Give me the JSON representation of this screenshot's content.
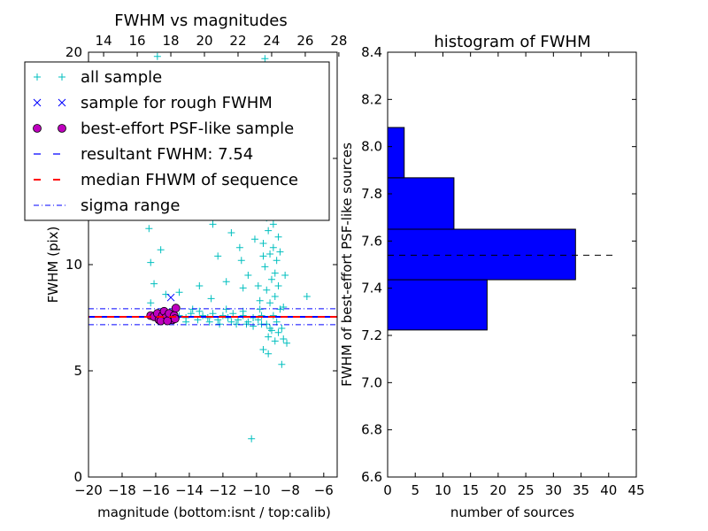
{
  "chart_data": [
    {
      "type": "scatter",
      "title": "FWHM vs magnitudes",
      "xlabel": "magnitude (bottom:isnt / top:calib)",
      "ylabel": "FWHM (pix)",
      "xlim": [
        -20,
        -5.2
      ],
      "ylim": [
        0,
        20
      ],
      "xticks": [
        -20,
        -18,
        -16,
        -14,
        -12,
        -10,
        -8,
        -6
      ],
      "xtick_labels": [
        "−20",
        "−18",
        "−16",
        "−14",
        "−12",
        "−10",
        "−8",
        "−6"
      ],
      "yticks": [
        0,
        5,
        10,
        15,
        20
      ],
      "ytick_labels": [
        "0",
        "5",
        "10",
        "15",
        "20"
      ],
      "top_xticks": [
        14,
        16,
        18,
        20,
        22,
        24,
        26,
        28
      ],
      "top_xtick_labels": [
        "14",
        "16",
        "18",
        "20",
        "22",
        "24",
        "26",
        "28"
      ],
      "top_offset": 33.1,
      "grid": false,
      "legend_position": "upper-left",
      "legend": [
        {
          "label": "all sample",
          "marker": "plus",
          "color": "#00bfbf"
        },
        {
          "label": "sample for rough FWHM",
          "marker": "x",
          "color": "#0000ff"
        },
        {
          "label": "best-effort PSF-like sample",
          "marker": "circle",
          "color": "#bf00bf"
        },
        {
          "label": "resultant FWHM: 7.54",
          "marker": "dashed",
          "color": "#0000ff"
        },
        {
          "label": "median FHWM of sequence",
          "marker": "dashed",
          "color": "#ff0000"
        },
        {
          "label": "sigma range",
          "marker": "dashdot",
          "color": "#0000ff"
        }
      ],
      "lines": {
        "resultant": 7.54,
        "median": 7.54,
        "sigma_low": 7.17,
        "sigma_high": 7.92
      },
      "series": [
        {
          "name": "all sample",
          "color": "#00bfbf",
          "points": [
            [
              -14.6,
              7.6
            ],
            [
              -14.2,
              7.5
            ],
            [
              -13.9,
              7.7
            ],
            [
              -13.5,
              7.4
            ],
            [
              -13.2,
              7.6
            ],
            [
              -12.9,
              7.5
            ],
            [
              -12.6,
              7.7
            ],
            [
              -12.3,
              7.4
            ],
            [
              -12,
              7.6
            ],
            [
              -11.7,
              7.5
            ],
            [
              -11.4,
              7.7
            ],
            [
              -11.1,
              7.4
            ],
            [
              -10.8,
              7.6
            ],
            [
              -10.5,
              7.3
            ],
            [
              -10.2,
              7.5
            ],
            [
              -9.9,
              7.4
            ],
            [
              -13.8,
              7.9
            ],
            [
              -12.8,
              7.3
            ],
            [
              -11.8,
              7.9
            ],
            [
              -10.8,
              7.8
            ],
            [
              -9.8,
              7.9
            ],
            [
              -14.2,
              7.3
            ],
            [
              -12.2,
              7.2
            ],
            [
              -11.2,
              7.2
            ],
            [
              -10.2,
              7.1
            ],
            [
              -9.2,
              7.0
            ],
            [
              -13.4,
              7.8
            ],
            [
              -11.5,
              7.3
            ],
            [
              -10.6,
              7.2
            ],
            [
              -9.7,
              7.2
            ],
            [
              -11.5,
              11.5
            ],
            [
              -11,
              10.8
            ],
            [
              -12.3,
              10.4
            ],
            [
              -10.5,
              9.5
            ],
            [
              -11.8,
              9.2
            ],
            [
              -10.8,
              8.9
            ],
            [
              -12.7,
              8.4
            ],
            [
              -13.4,
              9
            ],
            [
              -14.6,
              8.7
            ],
            [
              -16.3,
              10.1
            ],
            [
              -16.4,
              11.7
            ],
            [
              -16.1,
              9.1
            ],
            [
              -16.3,
              8.2
            ],
            [
              -15.7,
              10.7
            ],
            [
              -15.4,
              8.6
            ],
            [
              -10.3,
              1.8
            ],
            [
              -8.5,
              5.3
            ],
            [
              -7,
              8.5
            ],
            [
              -8.2,
              6.3
            ],
            [
              -8.4,
              6.5
            ],
            [
              -9.3,
              5.8
            ],
            [
              -9.6,
              6.0
            ],
            [
              -15.9,
              19.8
            ],
            [
              -9.5,
              19.7
            ],
            [
              -12.6,
              11.9
            ],
            [
              -11.2,
              12.5
            ],
            [
              -10.9,
              10.2
            ],
            [
              -10.1,
              11.2
            ],
            [
              -9.3,
              6.6
            ],
            [
              -9.1,
              6.9
            ],
            [
              -8.9,
              6.4
            ],
            [
              -8.7,
              6.8
            ],
            [
              -9.4,
              7.2
            ],
            [
              -9.0,
              7.6
            ],
            [
              -8.8,
              7.3
            ],
            [
              -8.6,
              7.9
            ],
            [
              -9.2,
              8.2
            ],
            [
              -8.9,
              8.5
            ],
            [
              -9.4,
              8.8
            ],
            [
              -8.7,
              9.0
            ],
            [
              -9.1,
              9.3
            ],
            [
              -8.9,
              9.6
            ],
            [
              -9.5,
              9.9
            ],
            [
              -8.8,
              10.2
            ],
            [
              -9.2,
              10.5
            ],
            [
              -9.0,
              10.8
            ],
            [
              -9.6,
              11.0
            ],
            [
              -8.7,
              11.3
            ],
            [
              -9.3,
              11.6
            ],
            [
              -9.0,
              11.9
            ],
            [
              -9.4,
              12.2
            ],
            [
              -8.9,
              12.5
            ],
            [
              -9.2,
              12.8
            ],
            [
              -9.5,
              13.2
            ],
            [
              -9.1,
              13.6
            ],
            [
              -9.3,
              14.1
            ],
            [
              -9.6,
              14.8
            ],
            [
              -9.2,
              15.5
            ],
            [
              -9.4,
              16.3
            ],
            [
              -9.1,
              17.2
            ],
            [
              -9.5,
              18.1
            ],
            [
              -9.3,
              18.9
            ],
            [
              -9.8,
              8.3
            ],
            [
              -9.9,
              9.0
            ],
            [
              -8.5,
              7.0
            ],
            [
              -8.4,
              8.0
            ],
            [
              -8.3,
              9.5
            ],
            [
              -9.7,
              7.6
            ],
            [
              -9.6,
              10.4
            ],
            [
              -8.6,
              10.6
            ]
          ]
        },
        {
          "name": "sample for rough FWHM",
          "color": "#0000ff",
          "points": [
            [
              -15.1,
              8.45
            ]
          ]
        },
        {
          "name": "best-effort PSF-like sample",
          "color": "#bf00bf",
          "points": [
            [
              -16.3,
              7.6
            ],
            [
              -16.1,
              7.55
            ],
            [
              -15.9,
              7.7
            ],
            [
              -15.8,
              7.4
            ],
            [
              -15.6,
              7.6
            ],
            [
              -15.5,
              7.8
            ],
            [
              -15.4,
              7.5
            ],
            [
              -15.2,
              7.7
            ],
            [
              -15.0,
              7.4
            ],
            [
              -14.9,
              7.6
            ],
            [
              -14.8,
              7.95
            ],
            [
              -15.7,
              7.35
            ],
            [
              -15.3,
              7.35
            ],
            [
              -14.85,
              7.45
            ]
          ]
        }
      ]
    },
    {
      "type": "bar",
      "orientation": "horizontal",
      "title": "histogram of FWHM",
      "xlabel": "number of sources",
      "ylabel": "FWHM of best-effort PSF-like sources",
      "xlim": [
        0,
        45
      ],
      "ylim": [
        6.6,
        8.4
      ],
      "xticks": [
        0,
        5,
        10,
        15,
        20,
        25,
        30,
        35,
        40,
        45
      ],
      "xtick_labels": [
        "0",
        "5",
        "10",
        "15",
        "20",
        "25",
        "30",
        "35",
        "40",
        "45"
      ],
      "yticks": [
        6.6,
        6.8,
        7.0,
        7.2,
        7.4,
        7.6,
        7.8,
        8.0,
        8.2,
        8.4
      ],
      "ytick_labels": [
        "6.6",
        "6.8",
        "7.0",
        "7.2",
        "7.4",
        "7.6",
        "7.8",
        "8.0",
        "8.2",
        "8.4"
      ],
      "bins": [
        [
          7.223,
          7.436
        ],
        [
          7.436,
          7.65
        ],
        [
          7.65,
          7.868
        ],
        [
          7.868,
          8.081
        ]
      ],
      "values": [
        18,
        34,
        12,
        3
      ],
      "bar_color": "#0000ff",
      "reference_line": {
        "y": 7.54,
        "x_to": 41
      },
      "grid": false
    }
  ]
}
